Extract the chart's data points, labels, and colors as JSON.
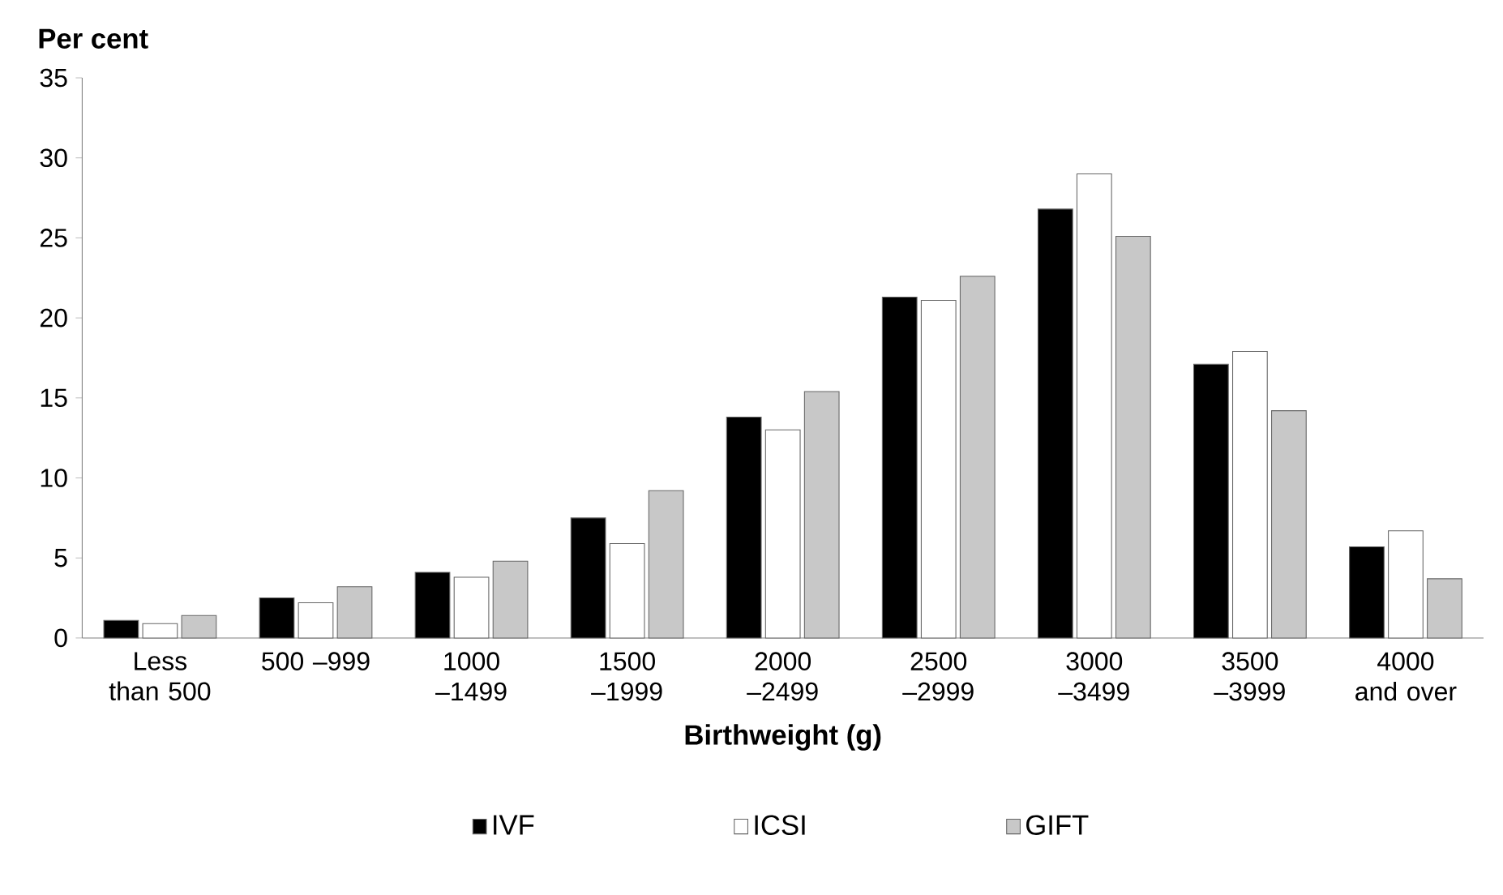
{
  "chart_data": {
    "type": "bar",
    "ylabel": "Per cent",
    "xlabel": "Birthweight (g)",
    "categories": [
      "Less than 500",
      "500 –999",
      "1000 –1499",
      "1500 –1999",
      "2000 –2499",
      "2500 –2999",
      "3000 –3499",
      "3500 –3999",
      "4000 and over"
    ],
    "series": [
      {
        "name": "IVF",
        "color": "#000000",
        "values": [
          1.1,
          2.5,
          4.1,
          7.5,
          13.8,
          21.3,
          26.8,
          17.1,
          5.7
        ]
      },
      {
        "name": "ICSI",
        "color": "#ffffff",
        "values": [
          0.9,
          2.2,
          3.8,
          5.9,
          13.0,
          21.1,
          29.0,
          17.9,
          6.7
        ]
      },
      {
        "name": "GIFT",
        "color": "#c8c8c8",
        "values": [
          1.4,
          3.2,
          4.8,
          9.2,
          15.4,
          22.6,
          25.1,
          14.2,
          3.7
        ]
      }
    ],
    "ylim": [
      0,
      35
    ],
    "yticks": [
      0,
      5,
      10,
      15,
      20,
      25,
      30,
      35
    ],
    "grid": false,
    "legend": "bottom"
  }
}
